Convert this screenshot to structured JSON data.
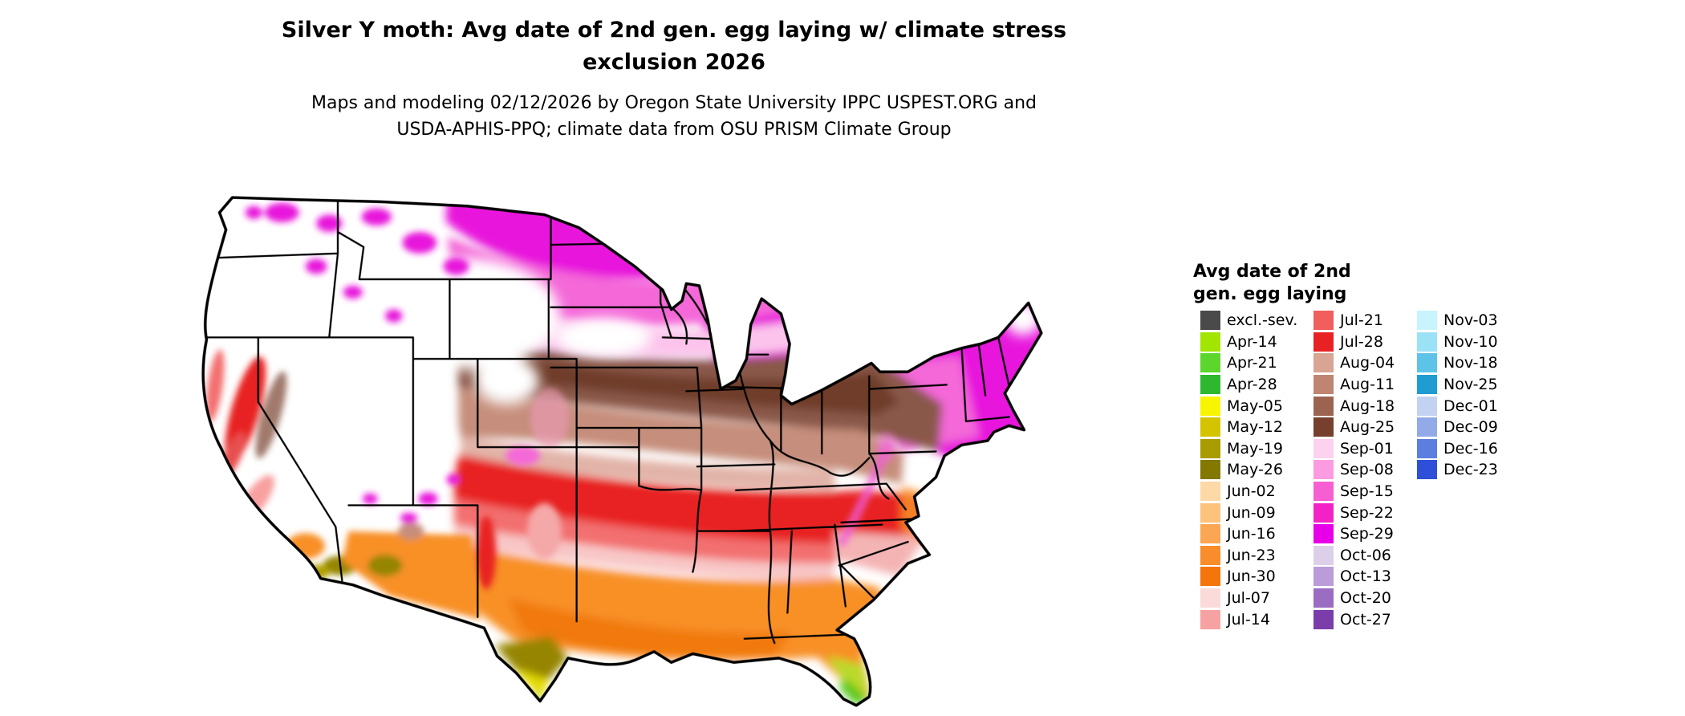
{
  "title": {
    "line1": "Silver Y moth: Avg date of 2nd gen. egg laying w/ climate stress",
    "line2": "exclusion 2026"
  },
  "subtitle": {
    "line1": "Maps and modeling 02/12/2026 by Oregon State University IPPC USPEST.ORG and",
    "line2": "USDA-APHIS-PPQ; climate data from OSU PRISM Climate Group"
  },
  "legend": {
    "title_line1": "Avg date of 2nd",
    "title_line2": "gen. egg laying",
    "columns": [
      {
        "entries": [
          {
            "label": "excl.-sev.",
            "color": "#4a4a4a"
          },
          {
            "label": "Apr-14",
            "color": "#a2e500"
          },
          {
            "label": "Apr-21",
            "color": "#5cd62c"
          },
          {
            "label": "Apr-28",
            "color": "#2eb82e"
          },
          {
            "label": "May-05",
            "color": "#f8f500"
          },
          {
            "label": "May-12",
            "color": "#d4c400"
          },
          {
            "label": "May-19",
            "color": "#a99c00"
          },
          {
            "label": "May-26",
            "color": "#837800"
          },
          {
            "label": "Jun-02",
            "color": "#fdd9a6"
          },
          {
            "label": "Jun-09",
            "color": "#fdc27c"
          },
          {
            "label": "Jun-16",
            "color": "#fba652"
          },
          {
            "label": "Jun-23",
            "color": "#f98c2b"
          },
          {
            "label": "Jun-30",
            "color": "#f47509"
          },
          {
            "label": "Jul-07",
            "color": "#fbdada"
          },
          {
            "label": "Jul-14",
            "color": "#f7a2a2"
          }
        ]
      },
      {
        "entries": [
          {
            "label": "Jul-21",
            "color": "#f25d5d"
          },
          {
            "label": "Jul-28",
            "color": "#e82222"
          },
          {
            "label": "Aug-04",
            "color": "#d8a494"
          },
          {
            "label": "Aug-11",
            "color": "#c08572"
          },
          {
            "label": "Aug-18",
            "color": "#9c6450"
          },
          {
            "label": "Aug-25",
            "color": "#763f2e"
          },
          {
            "label": "Sep-01",
            "color": "#fcd2ef"
          },
          {
            "label": "Sep-08",
            "color": "#fb9be0"
          },
          {
            "label": "Sep-15",
            "color": "#f75ed1"
          },
          {
            "label": "Sep-22",
            "color": "#f322c6"
          },
          {
            "label": "Sep-29",
            "color": "#e700e7"
          },
          {
            "label": "Oct-06",
            "color": "#dccfe9"
          },
          {
            "label": "Oct-13",
            "color": "#bb9cd8"
          },
          {
            "label": "Oct-20",
            "color": "#9a6cc2"
          },
          {
            "label": "Oct-27",
            "color": "#7a3daa"
          }
        ]
      },
      {
        "entries": [
          {
            "label": "Nov-03",
            "color": "#c8f4fd"
          },
          {
            "label": "Nov-10",
            "color": "#9ce2f6"
          },
          {
            "label": "Nov-18",
            "color": "#5ec3e9"
          },
          {
            "label": "Nov-25",
            "color": "#1f9cd1"
          },
          {
            "label": "Dec-01",
            "color": "#c3d2f1"
          },
          {
            "label": "Dec-09",
            "color": "#92aae8"
          },
          {
            "label": "Dec-16",
            "color": "#5c7ede"
          },
          {
            "label": "Dec-23",
            "color": "#2e4fd8"
          }
        ]
      }
    ]
  }
}
